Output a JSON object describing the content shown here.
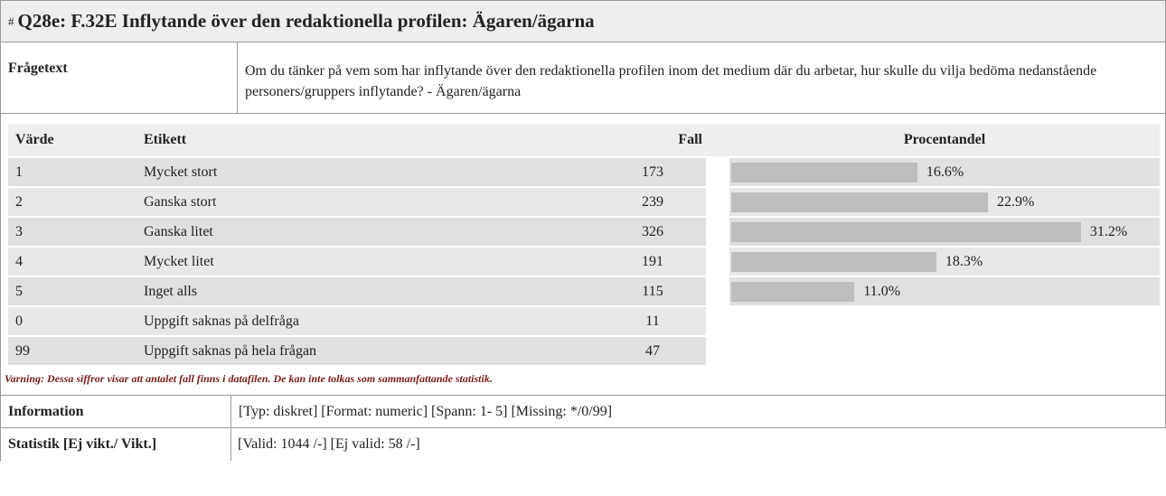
{
  "hash": "#",
  "title": "Q28e: F.32E Inflytande över den redaktionella profilen: Ägaren/ägarna",
  "question": {
    "label": "Frågetext",
    "text": "Om du tänker på vem som har inflytande över den redaktionella profilen inom det medium där du arbetar, hur skulle du vilja bedöma nedanstående personers/gruppers inflytande? - Ägaren/ägarna"
  },
  "table": {
    "headers": [
      "Värde",
      "Etikett",
      "Fall",
      "Procentandel"
    ],
    "rows": [
      {
        "value": 1,
        "label": "Mycket stort",
        "count": 173,
        "percent": 16.6,
        "percent_label": "16.6%"
      },
      {
        "value": 2,
        "label": "Ganska stort",
        "count": 239,
        "percent": 22.9,
        "percent_label": "22.9%"
      },
      {
        "value": 3,
        "label": "Ganska litet",
        "count": 326,
        "percent": 31.2,
        "percent_label": "31.2%"
      },
      {
        "value": 4,
        "label": "Mycket litet",
        "count": 191,
        "percent": 18.3,
        "percent_label": "18.3%"
      },
      {
        "value": 5,
        "label": "Inget alls",
        "count": 115,
        "percent": 11.0,
        "percent_label": "11.0%"
      },
      {
        "value": 0,
        "label": "Uppgift saknas på delfråga",
        "count": 11
      },
      {
        "value": 99,
        "label": "Uppgift saknas på hela frågan",
        "count": 47
      }
    ]
  },
  "warning": "Varning: Dessa siffror visar att antalet fall finns i datafilen. De kan inte tolkas som sammanfattande statistik.",
  "info": {
    "label": "Information",
    "text": "[Typ: diskret] [Format: numeric] [Spann: 1- 5] [Missing: */0/99]"
  },
  "stats": {
    "label": "Statistik [Ej vikt./ Vikt.]",
    "text": "[Valid: 1044 /-] [Ej valid: 58 /-]"
  }
}
